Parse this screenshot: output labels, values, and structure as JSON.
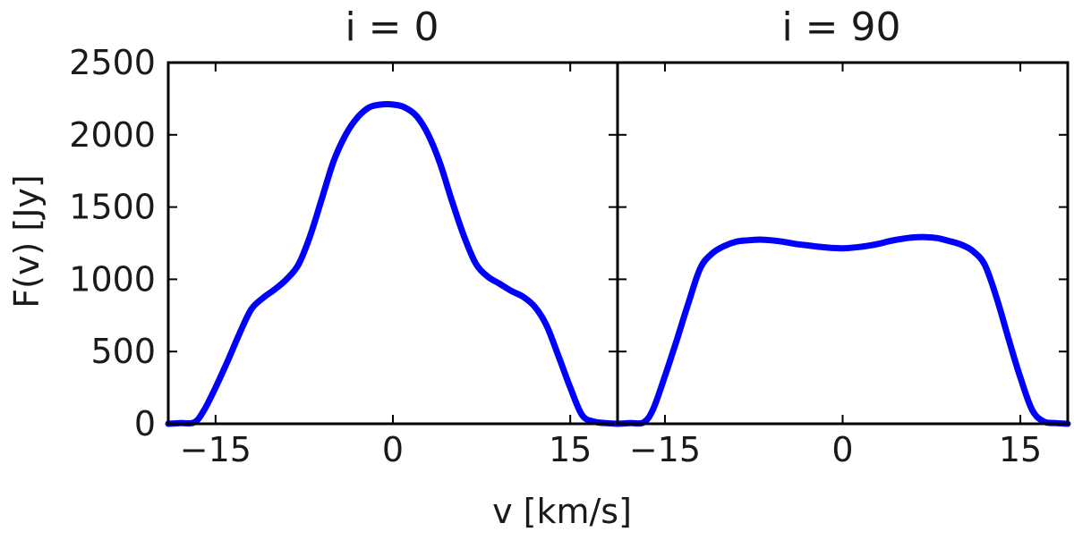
{
  "figure": {
    "xlabel": "v [km/s]",
    "ylabel": "F(v) [Jy]"
  },
  "chart_data": [
    {
      "type": "line",
      "title": "i = 0",
      "xlabel": "v [km/s]",
      "ylabel": "F(v) [Jy]",
      "xlim": [
        -19,
        19
      ],
      "ylim": [
        0,
        2500
      ],
      "xticks": [
        -15,
        0,
        15
      ],
      "yticks": [
        0,
        500,
        1000,
        1500,
        2000,
        2500
      ],
      "line_color": "#0000ff",
      "series": [
        {
          "x": [
            -19,
            -18,
            -16.8,
            -16,
            -15,
            -14,
            -13,
            -12,
            -11,
            -10,
            -9,
            -8,
            -7,
            -6,
            -5,
            -4,
            -3,
            -2,
            -1,
            0,
            1,
            2,
            3,
            4,
            5,
            6,
            7,
            8,
            9,
            10,
            11,
            12,
            13,
            14,
            15,
            16,
            17,
            18,
            19
          ],
          "y": [
            0,
            5,
            10,
            90,
            250,
            430,
            620,
            790,
            870,
            930,
            1000,
            1100,
            1300,
            1560,
            1820,
            2000,
            2120,
            2190,
            2210,
            2210,
            2190,
            2130,
            2000,
            1800,
            1540,
            1300,
            1110,
            1020,
            970,
            920,
            880,
            810,
            680,
            470,
            250,
            60,
            15,
            5,
            0
          ]
        }
      ]
    },
    {
      "type": "line",
      "title": "i = 90",
      "xlabel": "v [km/s]",
      "ylim": [
        0,
        2500
      ],
      "xlim": [
        -19,
        19
      ],
      "xticks": [
        -15,
        0,
        15
      ],
      "line_color": "#0000ff",
      "series": [
        {
          "x": [
            -19,
            -18,
            -16.8,
            -16,
            -15,
            -14,
            -13,
            -12,
            -11,
            -10,
            -9,
            -8,
            -7,
            -6,
            -5,
            -4,
            -3,
            -2,
            -1,
            0,
            1,
            2,
            3,
            4,
            5,
            6,
            7,
            8,
            9,
            10,
            11,
            12,
            13,
            14,
            15,
            16,
            17,
            18,
            19
          ],
          "y": [
            0,
            5,
            10,
            100,
            330,
            580,
            840,
            1080,
            1180,
            1230,
            1260,
            1270,
            1275,
            1270,
            1260,
            1245,
            1235,
            1225,
            1218,
            1215,
            1220,
            1230,
            1245,
            1265,
            1280,
            1290,
            1292,
            1285,
            1265,
            1240,
            1195,
            1100,
            870,
            590,
            320,
            95,
            15,
            5,
            0
          ]
        }
      ]
    }
  ]
}
